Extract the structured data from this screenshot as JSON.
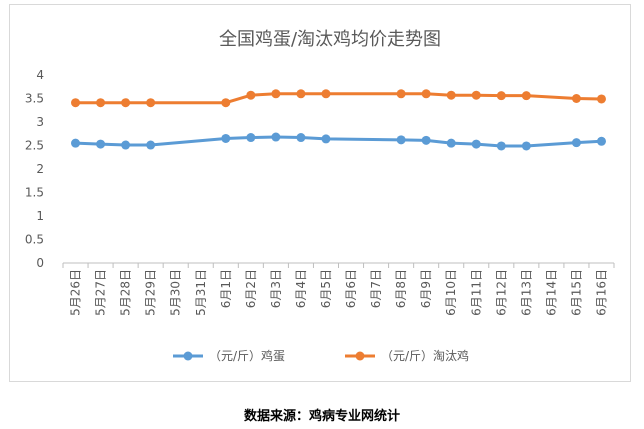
{
  "chart_data": {
    "type": "line",
    "title": "全国鸡蛋/淘汰鸡均价走势图",
    "xlabel": "",
    "ylabel": "",
    "ylim": [
      0,
      4
    ],
    "yticks": [
      "0",
      "0.5",
      "1",
      "1.5",
      "2",
      "2.5",
      "3",
      "3.5",
      "4"
    ],
    "grid": false,
    "legend_position": "bottom",
    "categories": [
      "5月26日",
      "5月27日",
      "5月28日",
      "5月29日",
      "5月30日",
      "5月31日",
      "6月1日",
      "6月2日",
      "6月3日",
      "6月4日",
      "6月5日",
      "6月6日",
      "6月7日",
      "6月8日",
      "6月9日",
      "6月10日",
      "6月11日",
      "6月12日",
      "6月13日",
      "6月14日",
      "6月15日",
      "6月16日"
    ],
    "series": [
      {
        "name": "（元/斤）鸡蛋",
        "color": "#5b9bd5",
        "values": [
          2.55,
          2.53,
          2.51,
          2.51,
          null,
          null,
          2.65,
          2.67,
          2.68,
          2.67,
          2.64,
          null,
          null,
          2.62,
          2.61,
          2.55,
          2.53,
          2.49,
          2.49,
          null,
          2.56,
          2.59
        ]
      },
      {
        "name": "（元/斤）淘汰鸡",
        "color": "#ed7d31",
        "values": [
          3.41,
          3.41,
          3.41,
          3.41,
          null,
          null,
          3.41,
          3.57,
          3.6,
          3.6,
          3.6,
          null,
          null,
          3.6,
          3.6,
          3.57,
          3.57,
          3.56,
          3.56,
          null,
          3.5,
          3.49
        ]
      }
    ]
  },
  "source_text": "数据来源：鸡病专业网统计"
}
